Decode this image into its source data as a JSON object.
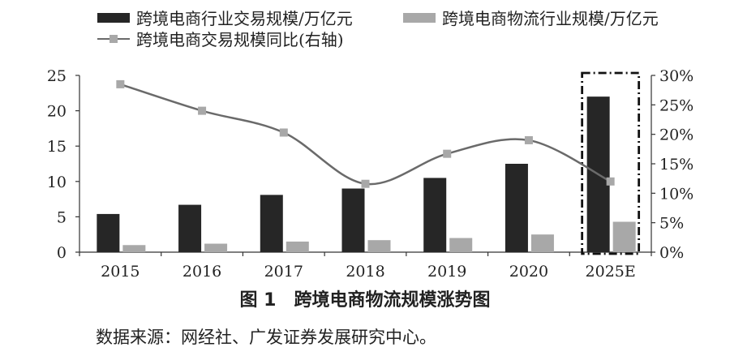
{
  "chart_data": {
    "type": "bar",
    "categories": [
      "2015",
      "2016",
      "2017",
      "2018",
      "2019",
      "2020",
      "2025E"
    ],
    "series": [
      {
        "name": "跨境电商行业交易规模/万亿元",
        "type": "bar",
        "axis": "left",
        "color": "#262626",
        "values": [
          5.4,
          6.7,
          8.1,
          9.0,
          10.5,
          12.5,
          22.0
        ]
      },
      {
        "name": "跨境电商物流行业规模/万亿元",
        "type": "bar",
        "axis": "left",
        "color": "#a8a8a8",
        "values": [
          1.0,
          1.2,
          1.5,
          1.7,
          2.0,
          2.5,
          4.3
        ]
      },
      {
        "name": "跨境电商交易规模同比(右轴)",
        "type": "line",
        "axis": "right",
        "color": "#6a6a6a",
        "marker_color": "#a8a8a8",
        "values": [
          28.5,
          24.0,
          20.3,
          11.6,
          16.7,
          19.0,
          12.0
        ]
      }
    ],
    "y_left": {
      "ticks": [
        "0",
        "5",
        "10",
        "15",
        "20",
        "25"
      ],
      "range": [
        0,
        25
      ]
    },
    "y_right": {
      "ticks": [
        "0%",
        "5%",
        "10%",
        "15%",
        "20%",
        "25%",
        "30%"
      ],
      "range": [
        0,
        30
      ]
    },
    "highlight_category": "2025E",
    "grid": false,
    "legend_position": "top"
  },
  "caption": "图 1　跨境电商物流规模涨势图",
  "source": "数据来源：网经社、广发证券发展研究中心。"
}
